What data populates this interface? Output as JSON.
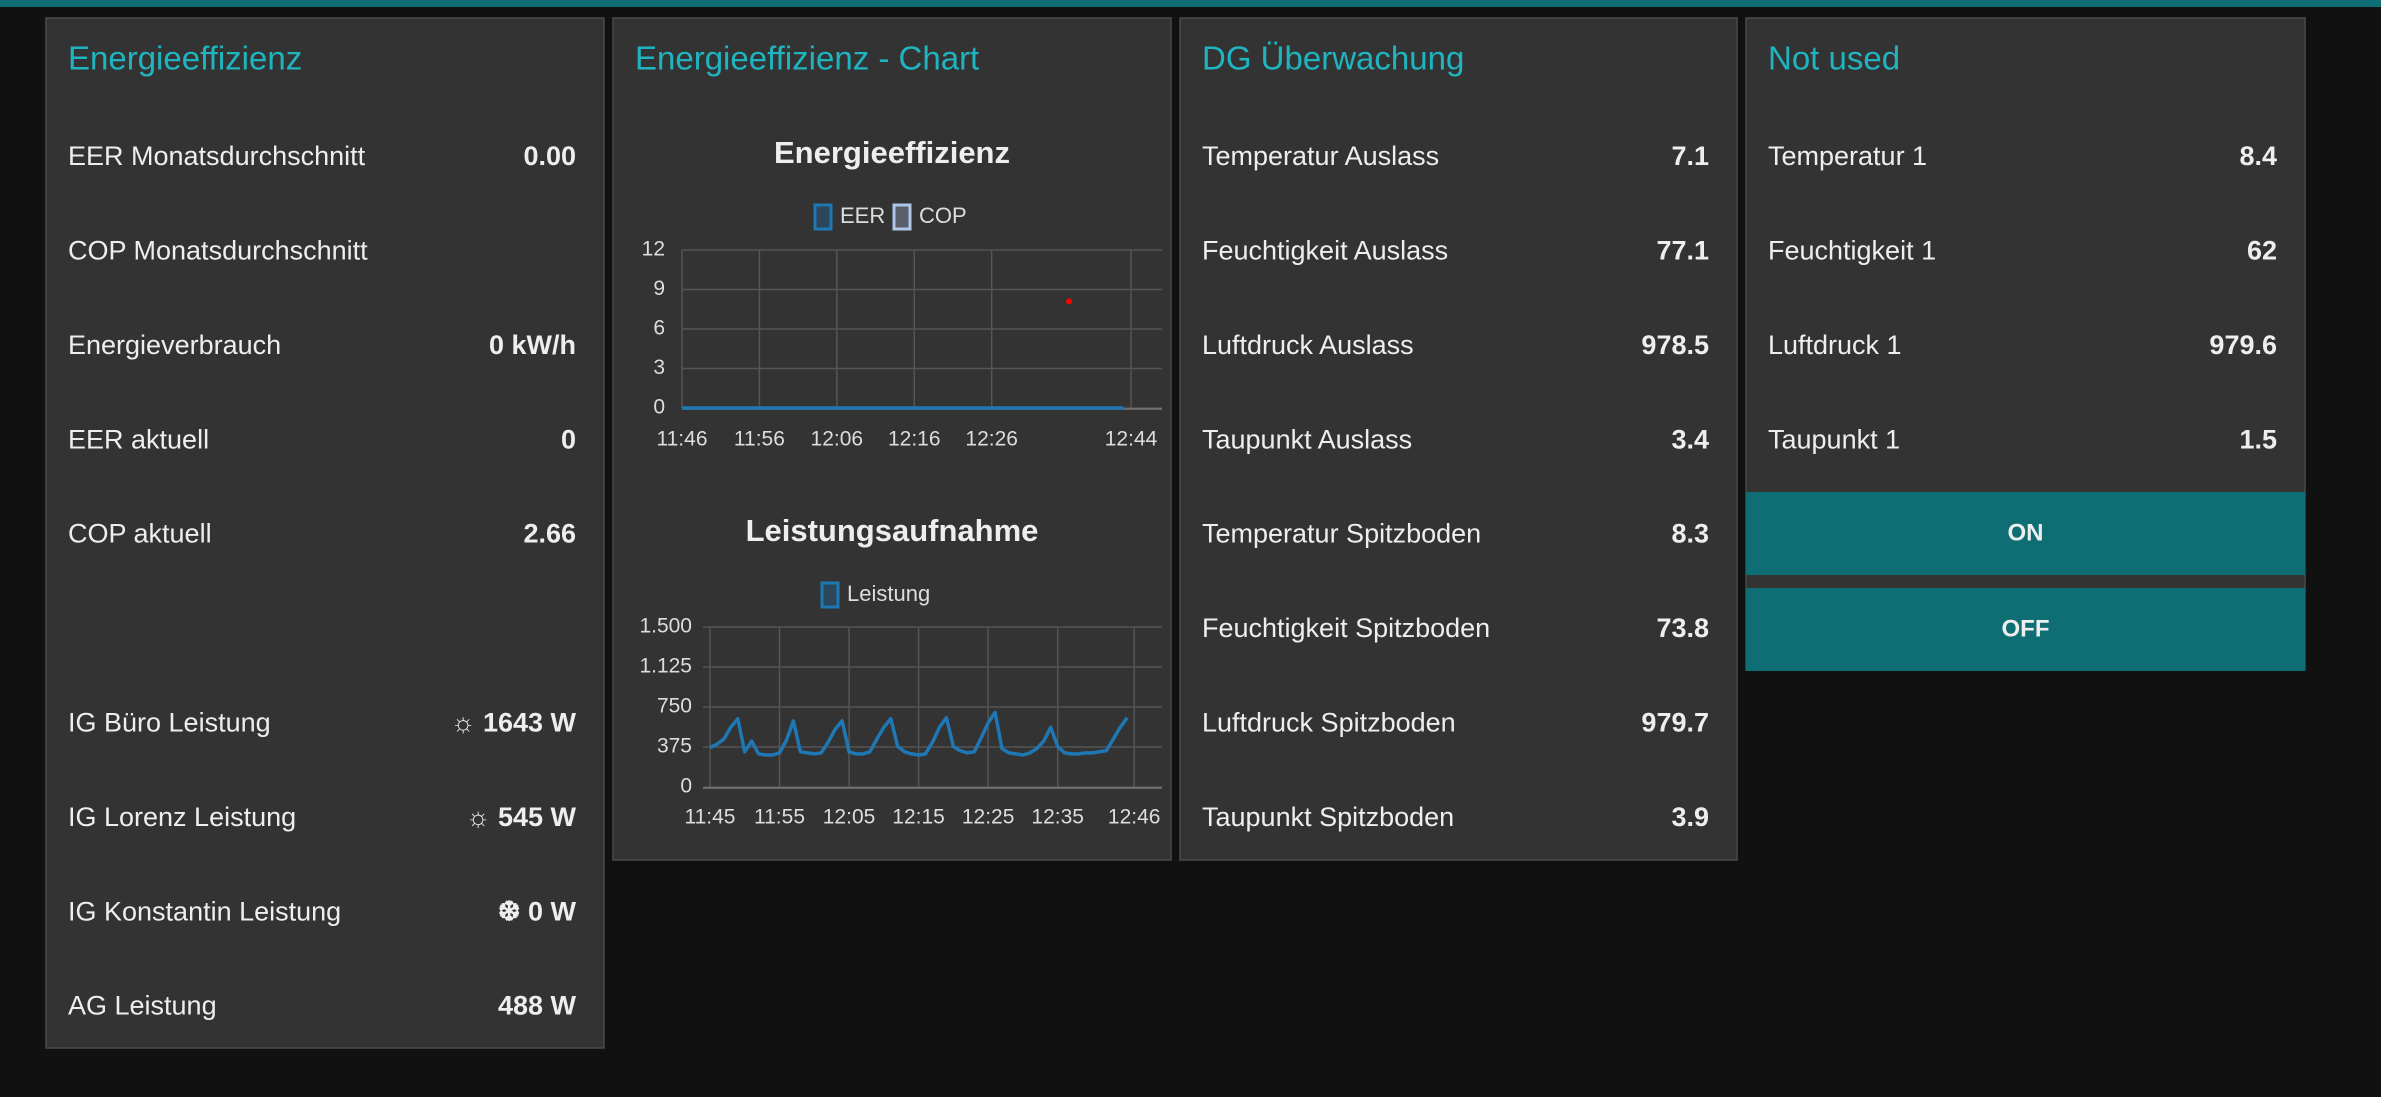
{
  "panels": [
    {
      "title": "Energieeffizienz",
      "rows": [
        {
          "label": "EER Monatsdurchschnitt",
          "value": "0.00"
        },
        {
          "label": "COP Monatsdurchschnitt"
        },
        {
          "label": "Energieverbrauch",
          "value": "0 kW/h"
        },
        {
          "label": "EER aktuell",
          "value": "0"
        },
        {
          "label": "COP aktuell",
          "value": "2.66"
        }
      ],
      "rows_lower": [
        {
          "label": "IG Büro Leistung",
          "value": "☼ 1643 W"
        },
        {
          "label": "IG Lorenz Leistung",
          "value": "☼ 545 W"
        },
        {
          "label": "IG Konstantin Leistung",
          "value": "❆ 0 W"
        },
        {
          "label": "AG Leistung",
          "value": "488 W"
        }
      ]
    },
    {
      "title": "Energieeffizienz - Chart"
    },
    {
      "title": "DG Überwachung",
      "rows": [
        {
          "label": "Temperatur Auslass",
          "value": "7.1"
        },
        {
          "label": "Feuchtigkeit Auslass",
          "value": "77.1"
        },
        {
          "label": "Luftdruck Auslass",
          "value": "978.5"
        },
        {
          "label": "Taupunkt Auslass",
          "value": "3.4"
        },
        {
          "label": "Temperatur Spitzboden",
          "value": "8.3"
        },
        {
          "label": "Feuchtigkeit Spitzboden",
          "value": "73.8"
        },
        {
          "label": "Luftdruck Spitzboden",
          "value": "979.7"
        },
        {
          "label": "Taupunkt Spitzboden",
          "value": "3.9"
        }
      ]
    },
    {
      "title": "Not used",
      "rows": [
        {
          "label": "Temperatur 1",
          "value": "8.4"
        },
        {
          "label": "Feuchtigkeit 1",
          "value": "62"
        },
        {
          "label": "Luftdruck 1",
          "value": "979.6"
        },
        {
          "label": "Taupunkt 1",
          "value": "1.5"
        }
      ],
      "buttons": [
        "ON",
        "OFF"
      ]
    }
  ],
  "chart_data": [
    {
      "type": "line",
      "title": "Energieeffizienz",
      "xlim": [
        "11:46",
        "12:48"
      ],
      "xticks": [
        "11:46",
        "11:56",
        "12:06",
        "12:16",
        "12:26",
        "12:44"
      ],
      "ylim": [
        0,
        12
      ],
      "yticks": [
        0,
        3,
        6,
        9,
        12
      ],
      "grid": true,
      "series": [
        {
          "name": "EER",
          "color": "#1f77b4",
          "x": [
            "11:46",
            "12:43"
          ],
          "values": [
            0,
            0
          ]
        },
        {
          "name": "COP",
          "color": "#aec7e8",
          "point_color": "#ff0000",
          "x": [
            "12:36"
          ],
          "values": [
            8.1
          ]
        }
      ]
    },
    {
      "type": "line",
      "title": "Leistungsaufnahme",
      "xlim": [
        "11:44",
        "12:50"
      ],
      "xticks": [
        "11:45",
        "11:55",
        "12:05",
        "12:15",
        "12:25",
        "12:35",
        "12:46"
      ],
      "ylim": [
        0,
        1500
      ],
      "yticks": [
        0,
        375,
        750,
        {
          "value": 1125,
          "label": "1.125"
        },
        {
          "value": 1500,
          "label": "1.500"
        }
      ],
      "grid": true,
      "series": [
        {
          "name": "Leistung",
          "color": "#1f77b4",
          "x": [
            "11:45",
            "11:46",
            "11:47",
            "11:48",
            "11:49",
            "11:50",
            "11:51",
            "11:52",
            "11:53",
            "11:54",
            "11:55",
            "11:56",
            "11:57",
            "11:58",
            "11:59",
            "12:00",
            "12:01",
            "12:02",
            "12:03",
            "12:04",
            "12:05",
            "12:06",
            "12:07",
            "12:08",
            "12:09",
            "12:10",
            "12:11",
            "12:12",
            "12:13",
            "12:14",
            "12:15",
            "12:16",
            "12:17",
            "12:18",
            "12:19",
            "12:20",
            "12:21",
            "12:22",
            "12:23",
            "12:24",
            "12:25",
            "12:26",
            "12:27",
            "12:28",
            "12:29",
            "12:30",
            "12:31",
            "12:32",
            "12:33",
            "12:34",
            "12:35",
            "12:36",
            "12:37",
            "12:38",
            "12:39",
            "12:40",
            "12:41",
            "12:42",
            "12:43",
            "12:44",
            "12:45"
          ],
          "values": [
            370,
            400,
            450,
            560,
            640,
            330,
            430,
            310,
            300,
            300,
            320,
            440,
            620,
            330,
            320,
            310,
            320,
            420,
            540,
            620,
            330,
            310,
            310,
            330,
            450,
            560,
            640,
            380,
            330,
            310,
            300,
            310,
            420,
            560,
            650,
            380,
            340,
            320,
            330,
            460,
            600,
            700,
            360,
            320,
            310,
            300,
            320,
            360,
            430,
            560,
            380,
            320,
            310,
            310,
            320,
            320,
            330,
            340,
            450,
            560,
            650
          ]
        }
      ]
    }
  ]
}
